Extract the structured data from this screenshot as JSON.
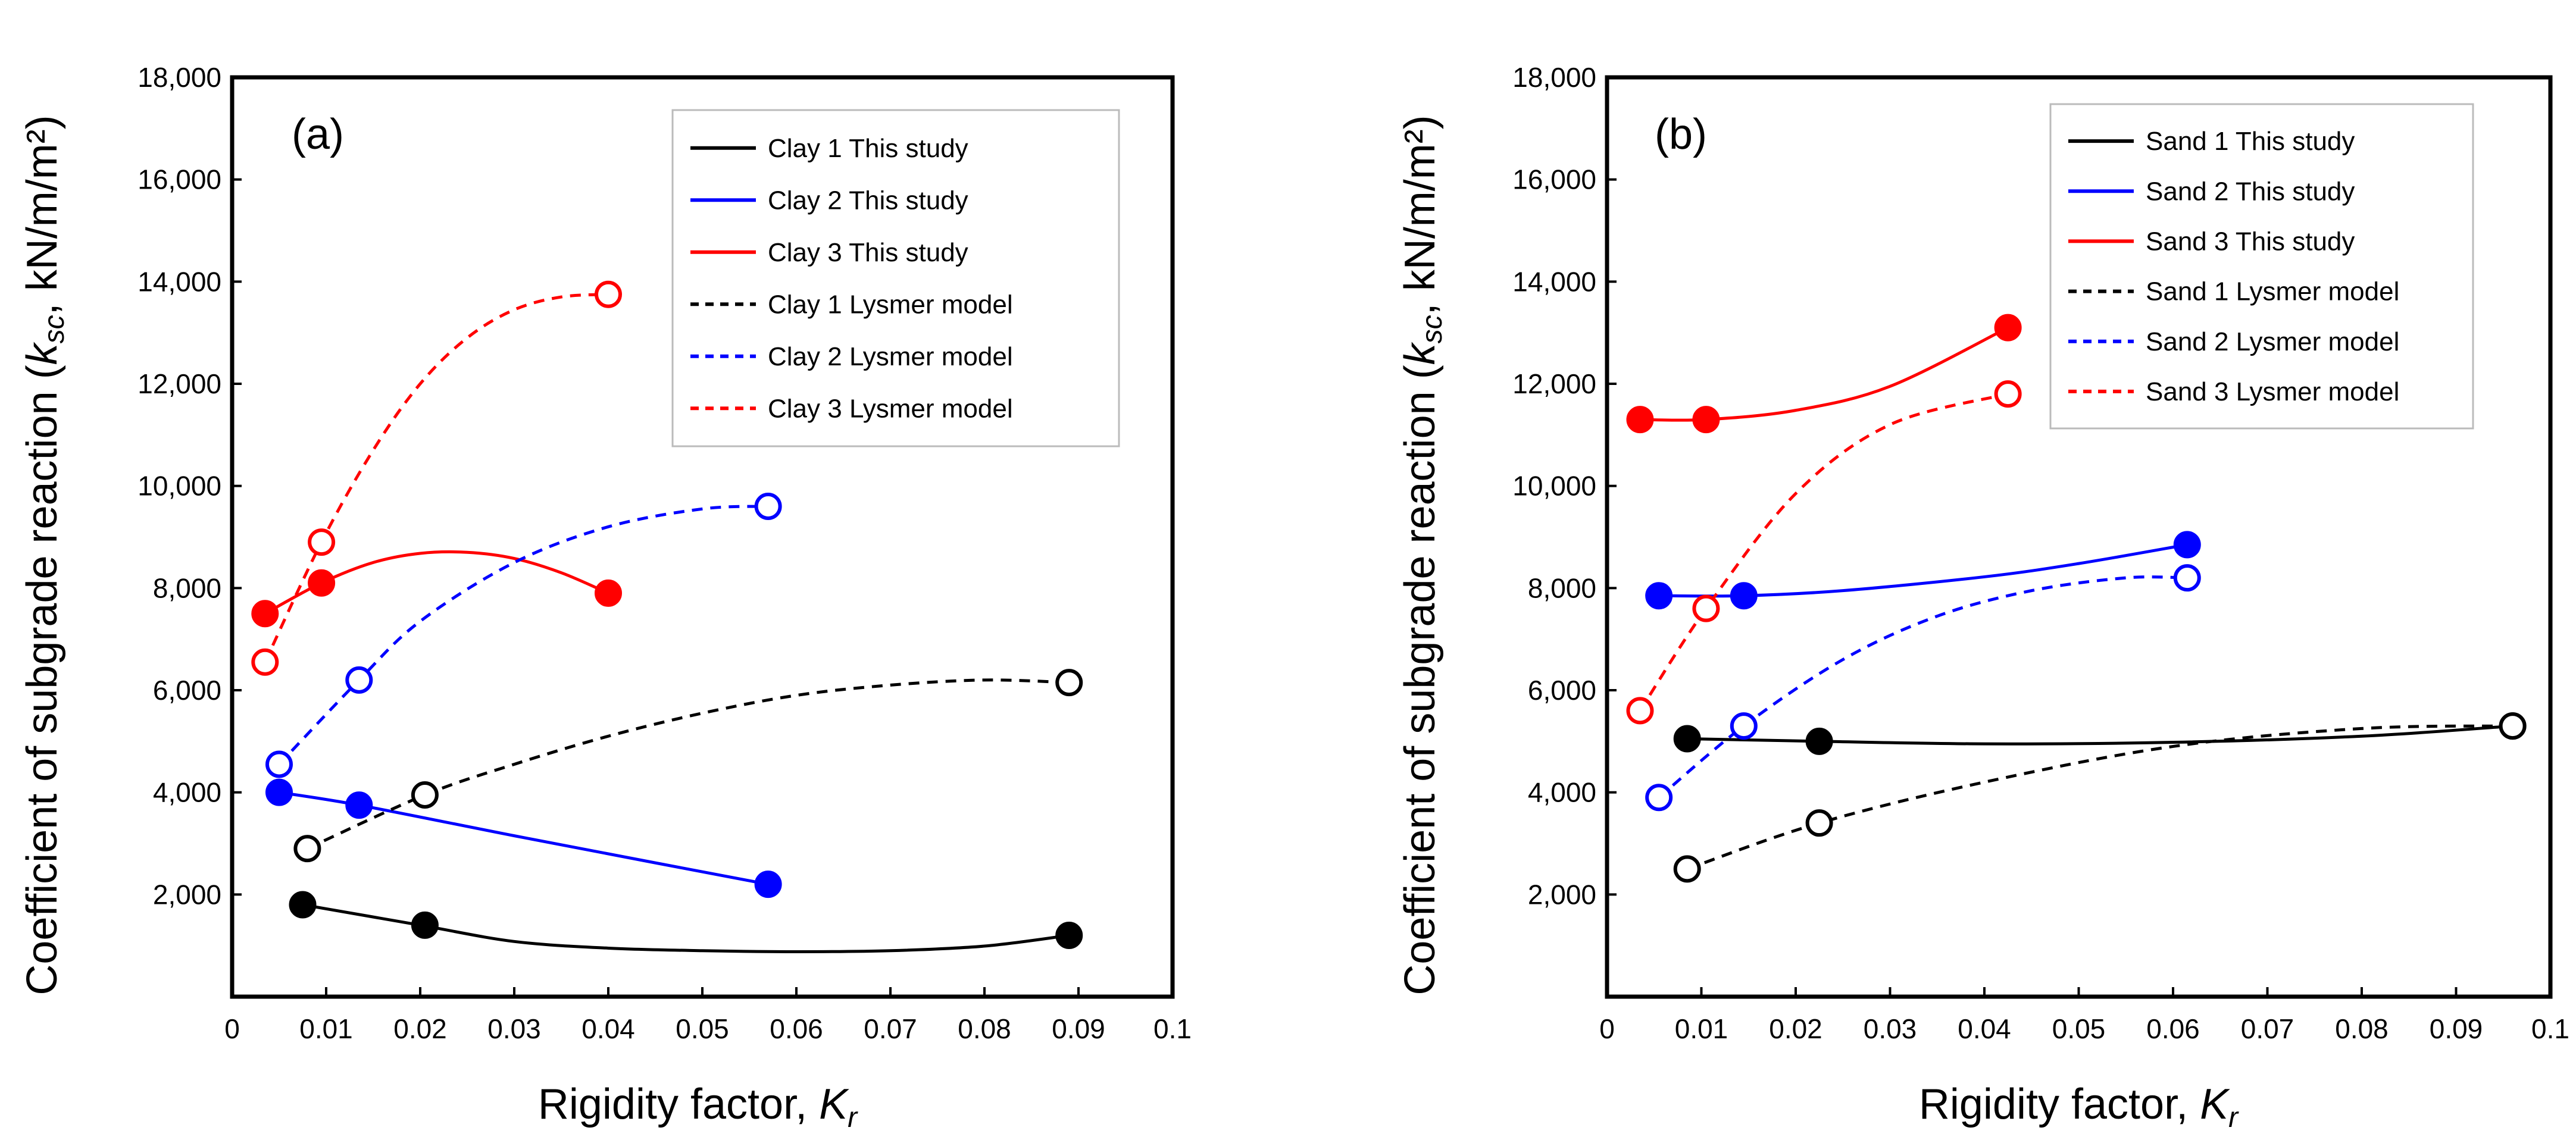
{
  "chart_data": [
    {
      "type": "line",
      "panel_label": "(a)",
      "xlabel_main": "Rigidity factor, ",
      "xlabel_sym": "K",
      "xlabel_sub": "r",
      "ylabel_main": "Coefficient of subgrade reaction (",
      "ylabel_sym": "k",
      "ylabel_sub": "sc",
      "ylabel_end": ",  kN/m/m²)",
      "xlim": [
        0,
        0.1
      ],
      "ylim": [
        0,
        18000
      ],
      "xtick_labels": [
        "0",
        "0.01",
        "0.02",
        "0.03",
        "0.04",
        "0.05",
        "0.06",
        "0.07",
        "0.08",
        "0.09",
        "0.1"
      ],
      "ytick_labels": [
        "2,000",
        "4,000",
        "6,000",
        "8,000",
        "10,000",
        "12,000",
        "14,000",
        "16,000",
        "18,000"
      ],
      "legend_position": "top-right",
      "series": [
        {
          "name": "Clay 1 This study",
          "color": "#000000",
          "dashed": false,
          "filled": true,
          "x": [
            0.0075,
            0.0205,
            0.089
          ],
          "y": [
            1800,
            1400,
            1200
          ],
          "curve": [
            [
              0.0075,
              1800
            ],
            [
              0.02,
              1400
            ],
            [
              0.03,
              1080
            ],
            [
              0.04,
              950
            ],
            [
              0.05,
              900
            ],
            [
              0.06,
              880
            ],
            [
              0.07,
              900
            ],
            [
              0.08,
              990
            ],
            [
              0.089,
              1200
            ]
          ]
        },
        {
          "name": "Clay 2 This study",
          "color": "#0000ff",
          "dashed": false,
          "filled": true,
          "x": [
            0.005,
            0.0135,
            0.057
          ],
          "y": [
            4000,
            3750,
            2200
          ],
          "curve": [
            [
              0.005,
              4000
            ],
            [
              0.0135,
              3750
            ],
            [
              0.03,
              3150
            ],
            [
              0.045,
              2620
            ],
            [
              0.057,
              2200
            ]
          ]
        },
        {
          "name": "Clay 3 This study",
          "color": "#ff0000",
          "dashed": false,
          "filled": true,
          "x": [
            0.0035,
            0.0095,
            0.04
          ],
          "y": [
            7500,
            8100,
            7900
          ],
          "curve": [
            [
              0.0035,
              7500
            ],
            [
              0.0095,
              8100
            ],
            [
              0.015,
              8500
            ],
            [
              0.02,
              8680
            ],
            [
              0.025,
              8700
            ],
            [
              0.03,
              8580
            ],
            [
              0.035,
              8300
            ],
            [
              0.04,
              7900
            ]
          ]
        },
        {
          "name": "Clay 1 Lysmer model",
          "color": "#000000",
          "dashed": true,
          "filled": false,
          "x": [
            0.008,
            0.0205,
            0.089
          ],
          "y": [
            2900,
            3950,
            6150
          ],
          "curve": [
            [
              0.008,
              2900
            ],
            [
              0.0205,
              3950
            ],
            [
              0.03,
              4550
            ],
            [
              0.04,
              5100
            ],
            [
              0.05,
              5550
            ],
            [
              0.06,
              5900
            ],
            [
              0.07,
              6100
            ],
            [
              0.08,
              6200
            ],
            [
              0.089,
              6150
            ]
          ]
        },
        {
          "name": "Clay 2 Lysmer model",
          "color": "#0000ff",
          "dashed": true,
          "filled": false,
          "x": [
            0.005,
            0.0135,
            0.057
          ],
          "y": [
            4550,
            6200,
            9600
          ],
          "curve": [
            [
              0.005,
              4550
            ],
            [
              0.0135,
              6200
            ],
            [
              0.02,
              7350
            ],
            [
              0.03,
              8500
            ],
            [
              0.04,
              9200
            ],
            [
              0.05,
              9550
            ],
            [
              0.057,
              9600
            ]
          ]
        },
        {
          "name": "Clay 3 Lysmer model",
          "color": "#ff0000",
          "dashed": true,
          "filled": false,
          "x": [
            0.0035,
            0.0095,
            0.04
          ],
          "y": [
            6550,
            8900,
            13750
          ],
          "curve": [
            [
              0.0035,
              6550
            ],
            [
              0.0095,
              8900
            ],
            [
              0.015,
              10700
            ],
            [
              0.02,
              12000
            ],
            [
              0.025,
              12900
            ],
            [
              0.03,
              13450
            ],
            [
              0.035,
              13700
            ],
            [
              0.04,
              13750
            ]
          ]
        }
      ]
    },
    {
      "type": "line",
      "panel_label": "(b)",
      "xlabel_main": "Rigidity factor, ",
      "xlabel_sym": "K",
      "xlabel_sub": "r",
      "ylabel_main": "Coefficient of subgrade reaction (",
      "ylabel_sym": "k",
      "ylabel_sub": "sc",
      "ylabel_end": ",  kN/m/m²)",
      "xlim": [
        0,
        0.1
      ],
      "ylim": [
        0,
        18000
      ],
      "xtick_labels": [
        "0",
        "0.01",
        "0.02",
        "0.03",
        "0.04",
        "0.05",
        "0.06",
        "0.07",
        "0.08",
        "0.09",
        "0.1"
      ],
      "ytick_labels": [
        "2,000",
        "4,000",
        "6,000",
        "8,000",
        "10,000",
        "12,000",
        "14,000",
        "16,000",
        "18,000"
      ],
      "legend_position": "top-right",
      "series": [
        {
          "name": "Sand 1 This study",
          "color": "#000000",
          "dashed": false,
          "filled": true,
          "x": [
            0.0085,
            0.0225,
            0.096
          ],
          "y": [
            5050,
            5000,
            5300
          ],
          "curve": [
            [
              0.0085,
              5050
            ],
            [
              0.0225,
              5000
            ],
            [
              0.04,
              4950
            ],
            [
              0.06,
              4980
            ],
            [
              0.08,
              5100
            ],
            [
              0.096,
              5300
            ]
          ]
        },
        {
          "name": "Sand 2 This study",
          "color": "#0000ff",
          "dashed": false,
          "filled": true,
          "x": [
            0.0055,
            0.0145,
            0.0615
          ],
          "y": [
            7850,
            7850,
            8850
          ],
          "curve": [
            [
              0.0055,
              7850
            ],
            [
              0.0145,
              7850
            ],
            [
              0.025,
              7950
            ],
            [
              0.04,
              8220
            ],
            [
              0.05,
              8480
            ],
            [
              0.0615,
              8850
            ]
          ]
        },
        {
          "name": "Sand 3 This study",
          "color": "#ff0000",
          "dashed": false,
          "filled": true,
          "x": [
            0.0035,
            0.0105,
            0.0425
          ],
          "y": [
            11300,
            11300,
            13100
          ],
          "curve": [
            [
              0.0035,
              11300
            ],
            [
              0.0105,
              11300
            ],
            [
              0.02,
              11480
            ],
            [
              0.03,
              11950
            ],
            [
              0.0425,
              13100
            ]
          ]
        },
        {
          "name": "Sand 1 Lysmer model",
          "color": "#000000",
          "dashed": true,
          "filled": false,
          "x": [
            0.0085,
            0.0225,
            0.096
          ],
          "y": [
            2500,
            3400,
            5300
          ],
          "curve": [
            [
              0.0085,
              2500
            ],
            [
              0.0225,
              3400
            ],
            [
              0.04,
              4200
            ],
            [
              0.06,
              4900
            ],
            [
              0.08,
              5250
            ],
            [
              0.096,
              5300
            ]
          ]
        },
        {
          "name": "Sand 2 Lysmer model",
          "color": "#0000ff",
          "dashed": true,
          "filled": false,
          "x": [
            0.0055,
            0.0145,
            0.0615
          ],
          "y": [
            3900,
            5300,
            8200
          ],
          "curve": [
            [
              0.0055,
              3900
            ],
            [
              0.0145,
              5300
            ],
            [
              0.025,
              6600
            ],
            [
              0.035,
              7450
            ],
            [
              0.045,
              7950
            ],
            [
              0.055,
              8200
            ],
            [
              0.0615,
              8200
            ]
          ]
        },
        {
          "name": "Sand 3 Lysmer model",
          "color": "#ff0000",
          "dashed": true,
          "filled": false,
          "x": [
            0.0035,
            0.0105,
            0.0425
          ],
          "y": [
            5600,
            7600,
            11800
          ],
          "curve": [
            [
              0.0035,
              5600
            ],
            [
              0.0105,
              7600
            ],
            [
              0.02,
              9850
            ],
            [
              0.03,
              11200
            ],
            [
              0.0425,
              11800
            ]
          ]
        }
      ]
    }
  ]
}
